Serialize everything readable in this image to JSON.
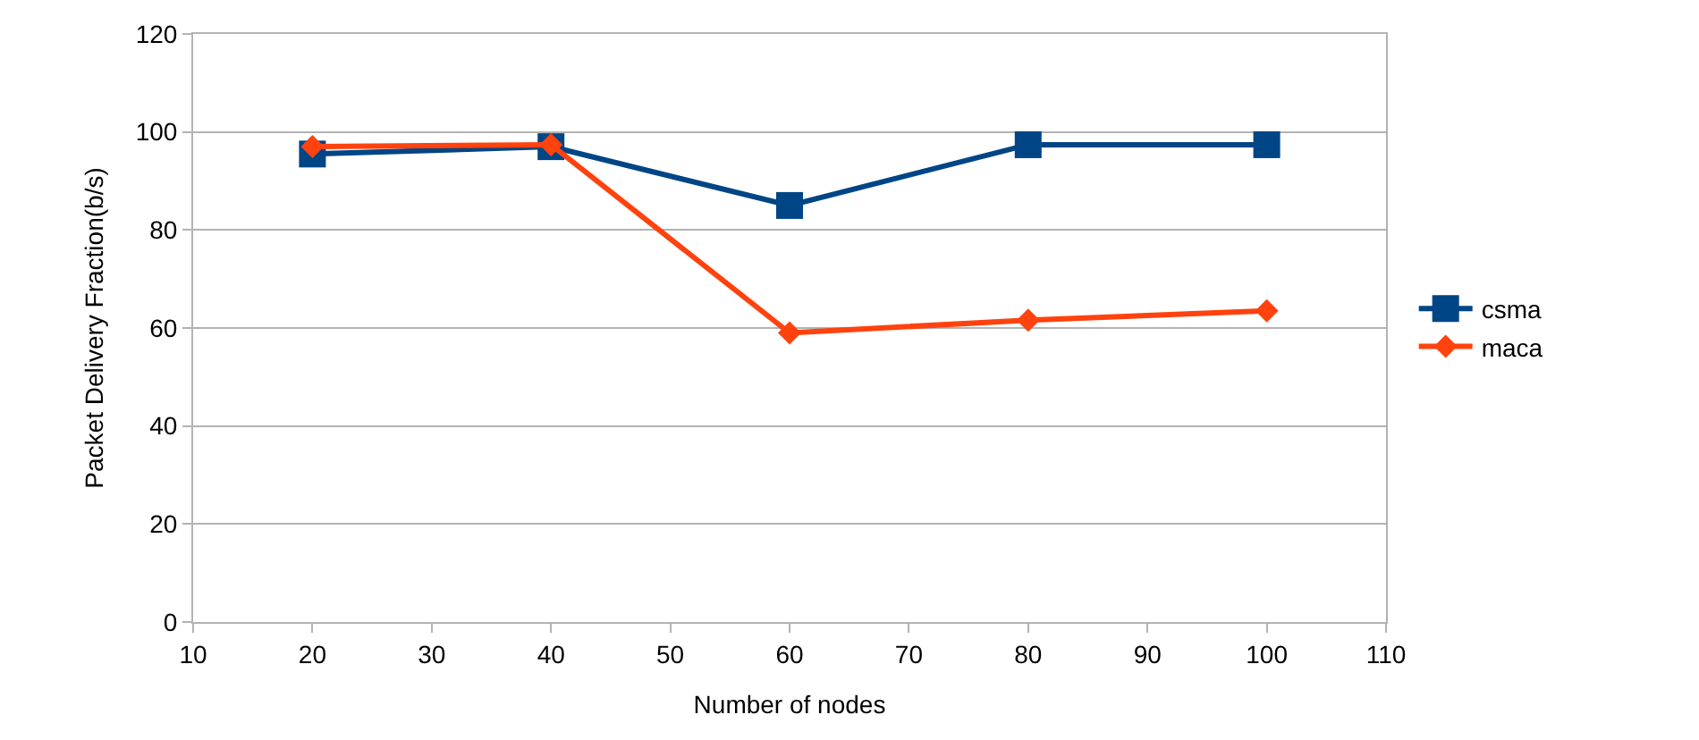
{
  "chart_data": {
    "type": "line",
    "xlabel": "Number of nodes",
    "ylabel": "Packet Delivery Fraction(b/s)",
    "x": [
      20,
      40,
      60,
      80,
      100
    ],
    "series": [
      {
        "name": "csma",
        "color": "#004586",
        "marker": "square",
        "values": [
          95.5,
          97,
          85,
          97.4,
          97.4
        ]
      },
      {
        "name": "maca",
        "color": "#ff420e",
        "marker": "diamond",
        "values": [
          97,
          97.4,
          59,
          61.6,
          63.5
        ]
      }
    ],
    "xlim": [
      10,
      110
    ],
    "xticks": [
      10,
      20,
      30,
      40,
      50,
      60,
      70,
      80,
      90,
      100,
      110
    ],
    "ylim": [
      0,
      120
    ],
    "yticks": [
      0,
      20,
      40,
      60,
      80,
      100,
      120
    ],
    "grid": "y",
    "legend": "right",
    "line_style": "solid"
  }
}
